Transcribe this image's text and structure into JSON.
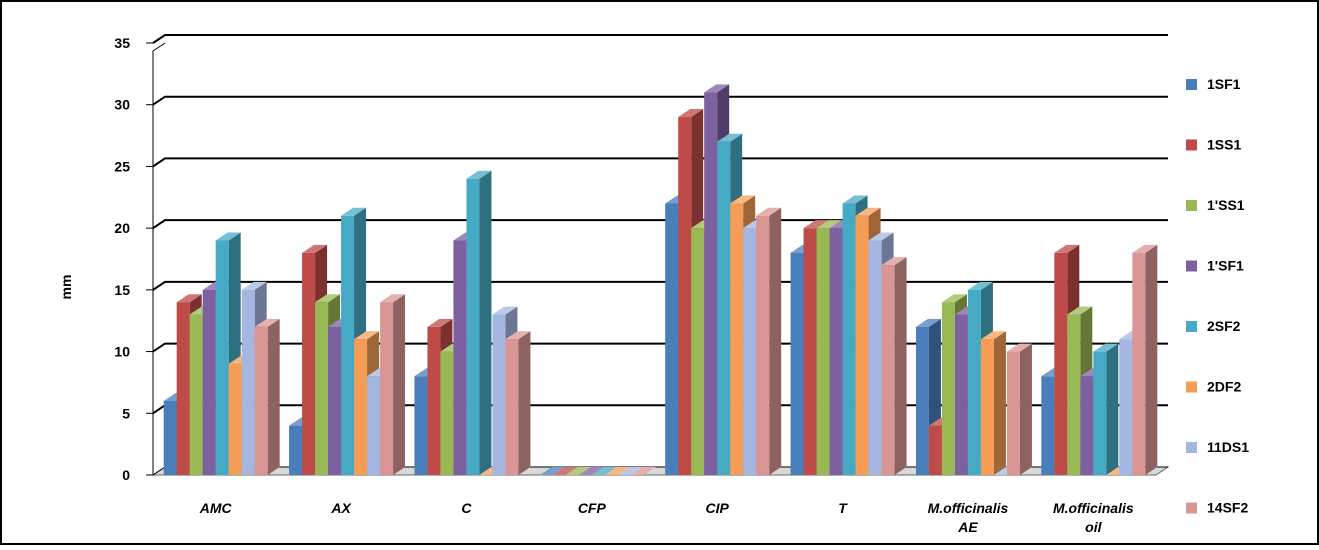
{
  "chart_data": {
    "type": "bar",
    "style": "3d-clustered-column",
    "title": "",
    "xlabel": "",
    "ylabel": "mm",
    "ylim": [
      0,
      35
    ],
    "yticks": [
      0,
      5,
      10,
      15,
      20,
      25,
      30,
      35
    ],
    "grid": true,
    "legend_position": "right",
    "categories": [
      [
        "AMC"
      ],
      [
        "AX"
      ],
      [
        "C"
      ],
      [
        "CFP"
      ],
      [
        "CIP"
      ],
      [
        "T"
      ],
      [
        "M.officinalis",
        "AE"
      ],
      [
        "M.officinalis",
        "oil"
      ]
    ],
    "series": [
      {
        "name": "1SF1",
        "color": "#4a7ebb",
        "values": [
          6,
          4,
          8,
          0,
          22,
          18,
          12,
          8
        ]
      },
      {
        "name": "1SS1",
        "color": "#be4b48",
        "values": [
          14,
          18,
          12,
          0,
          29,
          20,
          4,
          18
        ]
      },
      {
        "name": "1'SS1",
        "color": "#98b954",
        "values": [
          13,
          14,
          10,
          0,
          20,
          20,
          14,
          13
        ]
      },
      {
        "name": "1'SF1",
        "color": "#7d60a0",
        "values": [
          15,
          12,
          19,
          0,
          31,
          20,
          13,
          8
        ]
      },
      {
        "name": "2SF2",
        "color": "#46aac5",
        "values": [
          19,
          21,
          24,
          0,
          27,
          22,
          15,
          10
        ]
      },
      {
        "name": "2DF2",
        "color": "#f59d56",
        "values": [
          9,
          11,
          0,
          0,
          22,
          21,
          11,
          0
        ]
      },
      {
        "name": "11DS1",
        "color": "#a5b6e0",
        "values": [
          15,
          8,
          13,
          0,
          20,
          19,
          0,
          11
        ]
      },
      {
        "name": "14SF2",
        "color": "#d99694",
        "values": [
          12,
          14,
          11,
          0,
          21,
          17,
          10,
          18
        ]
      }
    ]
  }
}
